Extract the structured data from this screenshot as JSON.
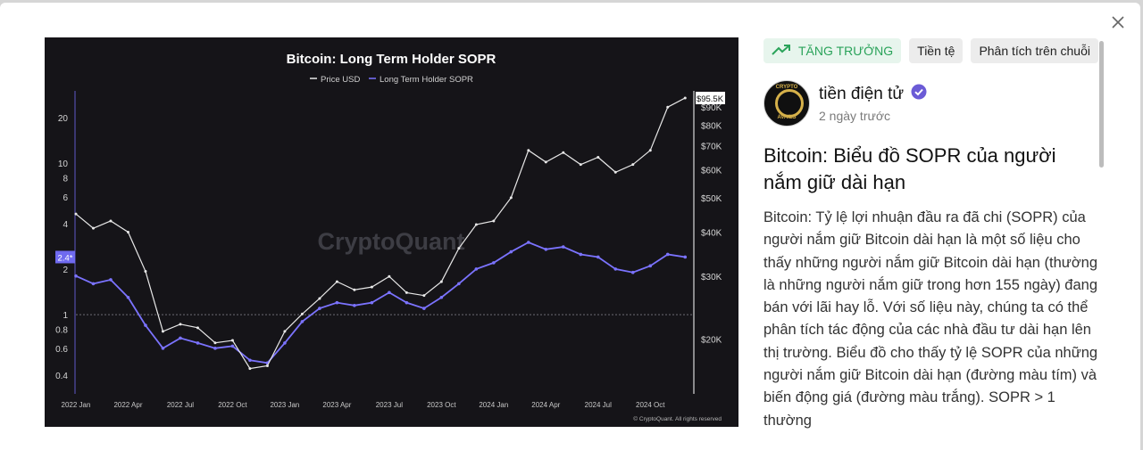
{
  "post": {
    "tags": [
      "TĂNG TRƯỞNG",
      "Tiền tệ",
      "Phân tích trên chuỗi"
    ],
    "author_name": "tiền điện tử",
    "author_time": "2 ngày trước",
    "title": "Bitcoin: Biểu đồ SOPR của người nắm giữ dài hạn",
    "body": "Bitcoin: Tỷ lệ lợi nhuận đầu ra đã chi (SOPR) của người nắm giữ Bitcoin dài hạn là một số liệu cho thấy những người nắm giữ Bitcoin dài hạn (thường là những người nắm giữ trong hơn 155 ngày) đang bán với lãi hay lỗ. Với số liệu này, chúng ta có thể phân tích tác động của các nhà đầu tư dài hạn lên thị trường. Biểu đồ cho thấy tỷ lệ SOPR của những người nắm giữ Bitcoin dài hạn (đường màu tím) và biến động giá (đường màu trắng). SOPR > 1 thường",
    "avatar_text": [
      "CRYPTO",
      "AVAILS"
    ]
  },
  "colors": {
    "trend_green": "#2aa35a",
    "sopr_purple": "#7b73ff",
    "price_white": "#e8e8e8",
    "verified_blue": "#6b5bd6"
  },
  "icons": [
    "trend-up-icon",
    "close-icon",
    "verified-badge-icon"
  ],
  "chart_data": {
    "type": "line",
    "title": "Bitcoin: Long Term Holder SOPR",
    "legend": [
      "Price USD",
      "Long Term Holder SOPR"
    ],
    "legend_position": "top-center",
    "watermark": "CryptoQuant",
    "copyright": "© CryptoQuant. All rights reserved",
    "left_axis": {
      "scale": "log",
      "ticks": [
        "20",
        "10",
        "8",
        "6",
        "4",
        "2",
        "1",
        "0.8",
        "0.6",
        "0.4"
      ],
      "marker": "2.4*"
    },
    "right_axis": {
      "scale": "log",
      "ticks": [
        "$90K",
        "$80K",
        "$70K",
        "$60K",
        "$50K",
        "$40K",
        "$30K",
        "$20K"
      ],
      "marker": "$95.5K"
    },
    "x_ticks": [
      "2022 Jan",
      "2022 Apr",
      "2022 Jul",
      "2022 Oct",
      "2023 Jan",
      "2023 Apr",
      "2023 Jul",
      "2023 Oct",
      "2024 Jan",
      "2024 Apr",
      "2024 Jul",
      "2024 Oct"
    ],
    "series": [
      {
        "name": "Price USD",
        "x": [
          "2022-01",
          "2022-02",
          "2022-03",
          "2022-04",
          "2022-05",
          "2022-06",
          "2022-07",
          "2022-08",
          "2022-09",
          "2022-10",
          "2022-11",
          "2022-12",
          "2023-01",
          "2023-02",
          "2023-03",
          "2023-04",
          "2023-05",
          "2023-06",
          "2023-07",
          "2023-08",
          "2023-09",
          "2023-10",
          "2023-11",
          "2023-12",
          "2024-01",
          "2024-02",
          "2024-03",
          "2024-04",
          "2024-05",
          "2024-06",
          "2024-07",
          "2024-08",
          "2024-09",
          "2024-10",
          "2024-11",
          "2024-12"
        ],
        "values": [
          45000,
          41000,
          43000,
          40000,
          31000,
          21000,
          22000,
          21500,
          19500,
          19800,
          16500,
          16800,
          21000,
          23500,
          26000,
          29000,
          27500,
          28000,
          30000,
          27000,
          26500,
          29000,
          36000,
          42000,
          43000,
          50000,
          68000,
          63000,
          67000,
          62000,
          65000,
          59000,
          62000,
          68000,
          90000,
          95500
        ]
      },
      {
        "name": "Long Term Holder SOPR",
        "x": [
          "2022-01",
          "2022-02",
          "2022-03",
          "2022-04",
          "2022-05",
          "2022-06",
          "2022-07",
          "2022-08",
          "2022-09",
          "2022-10",
          "2022-11",
          "2022-12",
          "2023-01",
          "2023-02",
          "2023-03",
          "2023-04",
          "2023-05",
          "2023-06",
          "2023-07",
          "2023-08",
          "2023-09",
          "2023-10",
          "2023-11",
          "2023-12",
          "2024-01",
          "2024-02",
          "2024-03",
          "2024-04",
          "2024-05",
          "2024-06",
          "2024-07",
          "2024-08",
          "2024-09",
          "2024-10",
          "2024-11",
          "2024-12"
        ],
        "values": [
          1.8,
          1.6,
          1.7,
          1.3,
          0.85,
          0.6,
          0.7,
          0.65,
          0.6,
          0.62,
          0.5,
          0.48,
          0.65,
          0.9,
          1.1,
          1.2,
          1.15,
          1.2,
          1.4,
          1.2,
          1.1,
          1.3,
          1.6,
          2.0,
          2.2,
          2.6,
          3.0,
          2.7,
          2.8,
          2.5,
          2.4,
          2.0,
          1.9,
          2.1,
          2.5,
          2.4
        ]
      }
    ]
  }
}
